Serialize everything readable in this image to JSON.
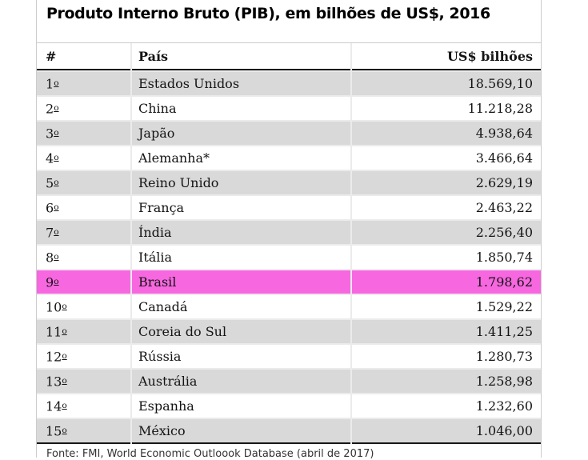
{
  "title": "Produto Interno Bruto (PIB), em bilhões de US$, 2016",
  "table": {
    "columns": {
      "rank": "#",
      "country": "País",
      "value": "US$ bilhões"
    },
    "rows": [
      {
        "rank": "1º",
        "country": "Estados Unidos",
        "value": "18.569,10"
      },
      {
        "rank": "2º",
        "country": "China",
        "value": "11.218,28"
      },
      {
        "rank": "3º",
        "country": "Japão",
        "value": "4.938,64"
      },
      {
        "rank": "4º",
        "country": "Alemanha*",
        "value": "3.466,64"
      },
      {
        "rank": "5º",
        "country": "Reino Unido",
        "value": "2.629,19"
      },
      {
        "rank": "6º",
        "country": "França",
        "value": "2.463,22"
      },
      {
        "rank": "7º",
        "country": "Índia",
        "value": "2.256,40"
      },
      {
        "rank": "8º",
        "country": "Itália",
        "value": "1.850,74"
      },
      {
        "rank": "9º",
        "country": "Brasil",
        "value": "1.798,62"
      },
      {
        "rank": "10º",
        "country": "Canadá",
        "value": "1.529,22"
      },
      {
        "rank": "11º",
        "country": "Coreia do Sul",
        "value": "1.411,25"
      },
      {
        "rank": "12º",
        "country": "Rússia",
        "value": "1.280,73"
      },
      {
        "rank": "13º",
        "country": "Austrália",
        "value": "1.258,98"
      },
      {
        "rank": "14º",
        "country": "Espanha",
        "value": "1.232,60"
      },
      {
        "rank": "15º",
        "country": "México",
        "value": "1.046,00"
      }
    ],
    "highlight": {
      "rank": "9º",
      "country": "Brasil",
      "color": "#f767e0"
    }
  },
  "footnote": "Fonte: FMI, World Economic Outloook Database (abril de 2017)",
  "colors": {
    "highlight_row": "#f767e0",
    "alt_row_gray": "#d9d9d9",
    "grid_gap": "#ebebeb",
    "heavy_rule": "#161616",
    "frame_border": "#cccccc"
  },
  "chart_data": {
    "type": "table",
    "title": "Produto Interno Bruto (PIB), em bilhões de US$, 2016",
    "columns": [
      "#",
      "País",
      "US$ bilhões"
    ],
    "categories": [
      "Estados Unidos",
      "China",
      "Japão",
      "Alemanha*",
      "Reino Unido",
      "França",
      "Índia",
      "Itália",
      "Brasil",
      "Canadá",
      "Coreia do Sul",
      "Rússia",
      "Austrália",
      "Espanha",
      "México"
    ],
    "values": [
      18569.1,
      11218.28,
      4938.64,
      3466.64,
      2629.19,
      2463.22,
      2256.4,
      1850.74,
      1798.62,
      1529.22,
      1411.25,
      1280.73,
      1258.98,
      1232.6,
      1046.0
    ],
    "value_unit": "US$ bilhões",
    "year": 2016,
    "highlighted_category": "Brasil",
    "source_note": "Fonte: FMI, World Economic Outloook Database (abril de 2017)"
  }
}
